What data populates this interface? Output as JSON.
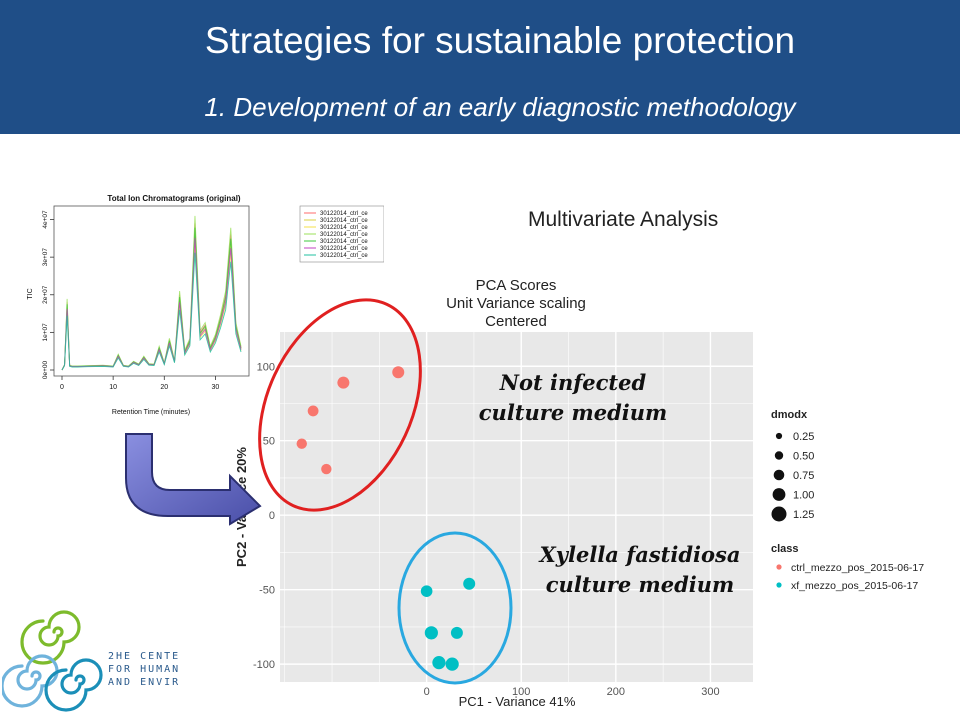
{
  "header": {
    "title": "Strategies for sustainable protection",
    "subtitle": "1. Development of an early diagnostic methodology"
  },
  "section_label": "Multivariate Analysis",
  "annotations": {
    "not_infected": [
      "Not infected",
      "culture medium"
    ],
    "xylella": [
      "Xylella fastidiosa",
      "culture medium"
    ]
  },
  "logo": {
    "lines": [
      "2HE CENTE",
      "FOR HUMAN",
      "AND ENVIR"
    ]
  },
  "colors": {
    "header": "#1f4e87",
    "ctrl": "#f8766d",
    "xf": "#00bfc4",
    "red_ellipse": "#e02020",
    "blue_ellipse": "#29a8e0",
    "arrow": "#6b6fc7"
  },
  "chart_data": [
    {
      "type": "line",
      "title": "Total Ion Chromatograms (original)",
      "xlabel": "Retention Time (minutes)",
      "ylabel": "TIC",
      "xlim": [
        0,
        35
      ],
      "ylim": [
        0,
        42000000.0
      ],
      "x_ticks": [
        "0",
        "10",
        "20",
        "30"
      ],
      "y_ticks": [
        "0e+00",
        "1e+07",
        "2e+07",
        "3e+07",
        "4e+07"
      ],
      "legend": [
        "30122014_ctrl_ce",
        "30122014_ctrl_ce",
        "30122014_ctrl_ce",
        "30122014_ctrl_ce",
        "30122014_ctrl_ce",
        "30122014_ctrl_ce",
        "30122014_ctrl_ce"
      ],
      "legend_colors": [
        "#ff6b6b",
        "#d8d040",
        "#f4e04a",
        "#9be05a",
        "#3cc83c",
        "#c040c0",
        "#20c0a0"
      ],
      "x": [
        0,
        0.5,
        1,
        1.5,
        2,
        3,
        5,
        8,
        10,
        11,
        12,
        13,
        14,
        15,
        16,
        17,
        18,
        19,
        20,
        21,
        22,
        23,
        24,
        25,
        26,
        27,
        28,
        29,
        30,
        31,
        32,
        33,
        34,
        35
      ],
      "y": [
        0,
        1400000.0,
        18000000.0,
        1200000.0,
        1000000.0,
        1000000.0,
        1100000.0,
        1200000.0,
        1000000.0,
        4000000.0,
        1200000.0,
        1000000.0,
        2200000.0,
        1500000.0,
        3500000.0,
        1600000.0,
        1500000.0,
        6000000.0,
        1800000.0,
        8000000.0,
        2400000.0,
        20000000.0,
        5000000.0,
        8000000.0,
        39000000.0,
        10000000.0,
        12000000.0,
        6000000.0,
        9000000.0,
        14000000.0,
        20000000.0,
        36000000.0,
        12000000.0,
        6000000.0
      ]
    },
    {
      "type": "scatter",
      "title": [
        "PCA Scores",
        "Unit Variance scaling",
        "Centered"
      ],
      "xlabel": "PC1 - Variance 41%",
      "ylabel": "PC2 - Variance 20%",
      "xlim": [
        -155,
        345
      ],
      "ylim": [
        -112,
        123
      ],
      "x_ticks": [
        0,
        100,
        200,
        300
      ],
      "y_ticks": [
        -100,
        -50,
        0,
        50,
        100
      ],
      "grid": true,
      "legend_placement": "right",
      "legend_dmodx": {
        "title": "dmodx",
        "entries": [
          "0.25",
          "0.50",
          "0.75",
          "1.00",
          "1.25"
        ]
      },
      "legend_class": {
        "title": "class",
        "entries": [
          "ctrl_mezzo_pos_2015-06-17",
          "xf_mezzo_pos_2015-06-17"
        ]
      },
      "series": [
        {
          "name": "ctrl_mezzo_pos_2015-06-17",
          "color": "#f8766d",
          "points": [
            {
              "x": -30,
              "y": 96,
              "dmodx": 0.75
            },
            {
              "x": -88,
              "y": 89,
              "dmodx": 0.75
            },
            {
              "x": -120,
              "y": 70,
              "dmodx": 0.6
            },
            {
              "x": -132,
              "y": 48,
              "dmodx": 0.55
            },
            {
              "x": -106,
              "y": 31,
              "dmodx": 0.55
            }
          ]
        },
        {
          "name": "xf_mezzo_pos_2015-06-17",
          "color": "#00bfc4",
          "points": [
            {
              "x": 45,
              "y": -46,
              "dmodx": 0.75
            },
            {
              "x": 0,
              "y": -51,
              "dmodx": 0.7
            },
            {
              "x": 5,
              "y": -79,
              "dmodx": 0.9
            },
            {
              "x": 32,
              "y": -79,
              "dmodx": 0.75
            },
            {
              "x": 13,
              "y": -99,
              "dmodx": 0.9
            },
            {
              "x": 27,
              "y": -100,
              "dmodx": 0.9
            }
          ]
        }
      ]
    }
  ]
}
